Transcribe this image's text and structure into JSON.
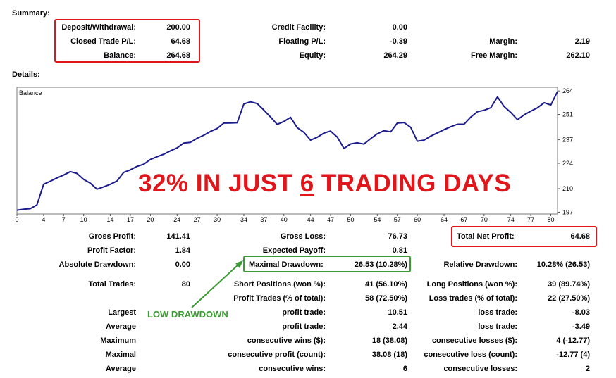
{
  "summary": {
    "title": "Summary:",
    "deposit_label": "Deposit/Withdrawal:",
    "deposit_value": "200.00",
    "closed_pl_label": "Closed Trade P/L:",
    "closed_pl_value": "64.68",
    "balance_label": "Balance:",
    "balance_value": "264.68",
    "credit_label": "Credit Facility:",
    "credit_value": "0.00",
    "floating_label": "Floating P/L:",
    "floating_value": "-0.39",
    "equity_label": "Equity:",
    "equity_value": "264.29",
    "margin_label": "Margin:",
    "margin_value": "2.19",
    "free_margin_label": "Free Margin:",
    "free_margin_value": "262.10"
  },
  "details": {
    "title": "Details:"
  },
  "overlay": {
    "headline_pre": "32% IN JUST ",
    "headline_num": "6",
    "headline_post": " TRADING DAYS",
    "low_drawdown": "LOW DRAWDOWN"
  },
  "colors": {
    "line": "#1a1a8c",
    "highlight_red": "#e0161b",
    "highlight_green": "#3c9a34",
    "grid": "#9aa0a6"
  },
  "chart_data": {
    "type": "line",
    "title": "Balance",
    "xlabel": "",
    "ylabel": "",
    "xlim": [
      0,
      81
    ],
    "ylim": [
      196,
      266
    ],
    "grid": true,
    "x_ticks": [
      0,
      4,
      7,
      10,
      14,
      17,
      20,
      24,
      27,
      30,
      34,
      37,
      40,
      44,
      47,
      50,
      54,
      57,
      60,
      64,
      67,
      70,
      74,
      77,
      80
    ],
    "y_ticks": [
      197,
      210,
      224,
      237,
      251,
      264
    ],
    "series": [
      {
        "name": "",
        "x": [
          0,
          1,
          2,
          3,
          4,
          5,
          6,
          7,
          8,
          9,
          10,
          11,
          12,
          13,
          14,
          15,
          16,
          17,
          18,
          19,
          20,
          21,
          22,
          23,
          24,
          25,
          26,
          27,
          28,
          29,
          30,
          31,
          32,
          33,
          34,
          35,
          36,
          37,
          38,
          39,
          40,
          41,
          42,
          43,
          44,
          45,
          46,
          47,
          48,
          49,
          50,
          51,
          52,
          53,
          54,
          55,
          56,
          57,
          58,
          59,
          60,
          61,
          62,
          63,
          64,
          65,
          66,
          67,
          68,
          69,
          70,
          71,
          72,
          73,
          74,
          75,
          76,
          77,
          78,
          79,
          80,
          81
        ],
        "values": [
          198.1,
          198.6,
          198.9,
          201.0,
          212.4,
          214.1,
          215.9,
          217.5,
          219.4,
          218.4,
          215.1,
          213.0,
          209.7,
          211.0,
          212.4,
          214.2,
          219.0,
          220.4,
          222.3,
          223.5,
          226.1,
          227.6,
          229.0,
          230.9,
          232.5,
          235.2,
          235.6,
          237.8,
          239.5,
          241.6,
          243.2,
          246.2,
          246.3,
          246.4,
          256.8,
          258.0,
          257.0,
          253.4,
          249.6,
          245.5,
          247.1,
          249.4,
          243.7,
          241.1,
          236.8,
          238.4,
          240.7,
          241.8,
          238.5,
          232.2,
          234.7,
          235.3,
          234.6,
          237.6,
          240.3,
          242.0,
          241.4,
          246.2,
          246.5,
          243.9,
          236.2,
          236.8,
          239.0,
          240.8,
          242.6,
          244.2,
          245.6,
          245.6,
          249.5,
          252.5,
          253.3,
          254.7,
          260.7,
          255.4,
          252.1,
          248.1,
          250.8,
          252.8,
          254.7,
          257.5,
          256.2,
          263.7
        ]
      }
    ]
  },
  "stats": {
    "gross_profit_label": "Gross Profit:",
    "gross_profit_value": "141.41",
    "gross_loss_label": "Gross Loss:",
    "gross_loss_value": "76.73",
    "total_net_label": "Total Net Profit:",
    "total_net_value": "64.68",
    "profit_factor_label": "Profit Factor:",
    "profit_factor_value": "1.84",
    "expected_payoff_label": "Expected Payoff:",
    "expected_payoff_value": "0.81",
    "abs_dd_label": "Absolute Drawdown:",
    "abs_dd_value": "0.00",
    "max_dd_label": "Maximal Drawdown:",
    "max_dd_value": "26.53 (10.28%)",
    "rel_dd_label": "Relative Drawdown:",
    "rel_dd_value": "10.28% (26.53)",
    "total_trades_label": "Total Trades:",
    "total_trades_value": "80",
    "short_label": "Short Positions (won %):",
    "short_value": "41 (56.10%)",
    "long_label": "Long Positions (won %):",
    "long_value": "39 (89.74%)",
    "profit_trades_label": "Profit Trades (% of total):",
    "profit_trades_value": "58 (72.50%)",
    "loss_trades_label": "Loss trades (% of total):",
    "loss_trades_value": "22 (27.50%)",
    "largest_label": "Largest",
    "largest_profit_label": "profit trade:",
    "largest_profit_value": "10.51",
    "largest_loss_label": "loss trade:",
    "largest_loss_value": "-8.03",
    "average_label": "Average",
    "average_profit_label": "profit trade:",
    "average_profit_value": "2.44",
    "average_loss_label": "loss trade:",
    "average_loss_value": "-3.49",
    "maximum_label": "Maximum",
    "max_cons_wins_label": "consecutive wins ($):",
    "max_cons_wins_value": "18 (38.08)",
    "max_cons_losses_label": "consecutive losses ($):",
    "max_cons_losses_value": "4 (-12.77)",
    "maximal_label": "Maximal",
    "maximal_cons_profit_label": "consecutive profit (count):",
    "maximal_cons_profit_value": "38.08 (18)",
    "maximal_cons_loss_label": "consecutive loss (count):",
    "maximal_cons_loss_value": "-12.77 (4)",
    "average2_label": "Average",
    "avg_cons_wins_label": "consecutive wins:",
    "avg_cons_wins_value": "6",
    "avg_cons_losses_label": "consecutive losses:",
    "avg_cons_losses_value": "2"
  }
}
